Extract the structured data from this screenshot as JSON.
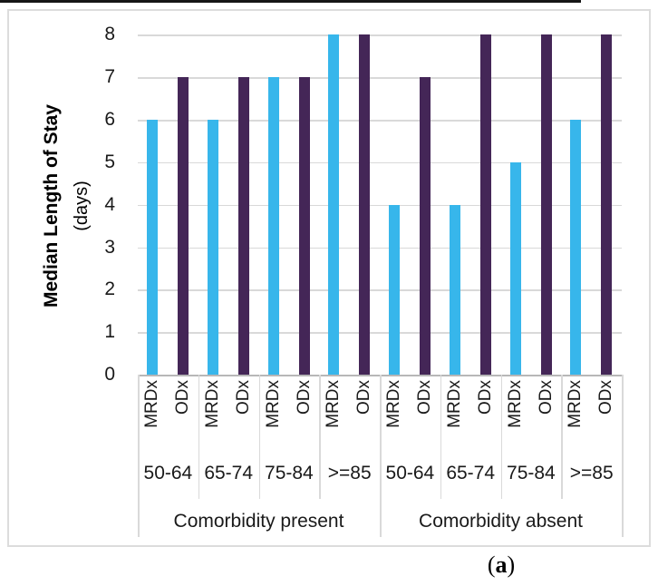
{
  "figure": {
    "caption": {
      "open": "(",
      "letter": "a",
      "close": ")"
    }
  },
  "chart_data": {
    "type": "bar",
    "title": "",
    "ylabel": "Median Length of Stay",
    "ylabel_units": "(days)",
    "xlabel": "",
    "ylim": [
      0,
      8
    ],
    "yticks": [
      0,
      1,
      2,
      3,
      4,
      5,
      6,
      7,
      8
    ],
    "grid": true,
    "legend": "none",
    "series_axis_note": "values listed per category left-to-right: Comorbidity present 50-64,65-74,75-84,>=85 then Comorbidity absent 50-64,65-74,75-84,>=85",
    "series": [
      {
        "name": "MRDx",
        "color": "#37b6eb",
        "values": [
          6,
          6,
          7,
          8,
          4,
          4,
          5,
          6
        ]
      },
      {
        "name": "ODx",
        "color": "#442657",
        "values": [
          7,
          7,
          7,
          8,
          7,
          8,
          8,
          8
        ]
      }
    ],
    "categories": [
      "50-64",
      "65-74",
      "75-84",
      ">=85",
      "50-64",
      "65-74",
      "75-84",
      ">=85"
    ],
    "group_labels": [
      "Comorbidity present",
      "Comorbidity absent"
    ],
    "gridline_color": "#d9d9d9",
    "axis_line_color": "#b7b7b7"
  }
}
